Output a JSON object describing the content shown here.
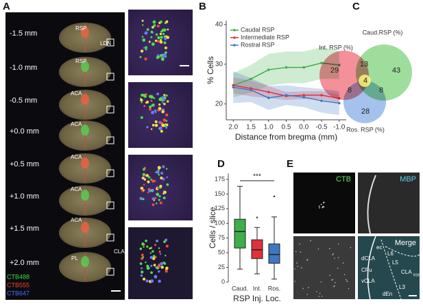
{
  "panels": {
    "letters": [
      "A",
      "B",
      "C",
      "D",
      "E"
    ],
    "a": {
      "levels": [
        "-1.5 mm",
        "-1.0 mm",
        "-0.5 mm",
        "+0.0 mm",
        "+0.5 mm",
        "+1.0 mm",
        "+1.5 mm",
        "+2.0 mm"
      ],
      "regions": [
        "RSP",
        "LDN",
        "RSP",
        "ACA",
        "ACA",
        "ACA",
        "ACA",
        "ACA",
        "PL",
        "CLA"
      ],
      "legend": [
        {
          "name": "CTB488",
          "color": "#3ddc3d"
        },
        {
          "name": "CTB555",
          "color": "#ff3b2f"
        },
        {
          "name": "CTB647",
          "color": "#4d6bff"
        }
      ]
    },
    "c": {
      "sets": [
        {
          "name": "Int. RSP (%)",
          "color": "#f06b78"
        },
        {
          "name": "Caud.RSP (%)",
          "color": "#7fd27a"
        },
        {
          "name": "Ros. RSP (%)",
          "color": "#86aee6"
        }
      ],
      "regions": [
        29,
        13,
        43,
        8,
        4,
        8,
        28
      ]
    },
    "e": {
      "channels": [
        {
          "name": "CTB",
          "color": "#6be36b"
        },
        {
          "name": "MBP",
          "color": "#5fd0e8"
        },
        {
          "name": "Merge",
          "color": "#ffffff"
        }
      ],
      "annotations": [
        "ec",
        "L6",
        "L5",
        "dCLA",
        "CPu",
        "CLA",
        "RSP",
        "vCLA",
        "dEn",
        "L3"
      ]
    }
  },
  "chart_data": [
    {
      "type": "line",
      "x_label": "Distance from bregma (mm)",
      "y_label": "% Cells",
      "x": [
        2,
        1.5,
        1,
        0.5,
        0,
        -0.5,
        -1
      ],
      "xlim": [
        2.2,
        -1.2
      ],
      "xticks": [
        {
          "value": 2,
          "label": "2.0"
        },
        1.5,
        {
          "value": 1,
          "label": "1.0"
        },
        0.5,
        {
          "value": 0,
          "label": "0.0"
        },
        -0.5,
        {
          "value": -1,
          "label": "-1.0"
        }
      ],
      "ylim": [
        16,
        41
      ],
      "yticks": [
        20,
        30,
        40
      ],
      "grid": false,
      "legend": "upper left",
      "series": [
        {
          "name": "Caudal RSP",
          "color": "#3fae49",
          "values": [
            24.7,
            26.3,
            28.6,
            29.2,
            29.2,
            30.3,
            29.8
          ],
          "errors": [
            3,
            3.5,
            4,
            4,
            4,
            4,
            3.5
          ]
        },
        {
          "name": "Intermediate RSP",
          "color": "#e0313d",
          "values": [
            24.7,
            23.9,
            23,
            22,
            22.2,
            22.2,
            21.4
          ],
          "errors": [
            2,
            2,
            1.5,
            1,
            1,
            1,
            1
          ]
        },
        {
          "name": "Rostral RSP",
          "color": "#3e78c2",
          "values": [
            24.2,
            23.5,
            21.5,
            22.2,
            21.7,
            20.8,
            20.2
          ],
          "errors": [
            4,
            3,
            3,
            2.5,
            2.5,
            3,
            3
          ]
        }
      ]
    },
    {
      "type": "box",
      "x_label": "RSP Inj. Loc.",
      "y_label": "Cells / slice",
      "annotation": "***",
      "categories": [
        "Caud.",
        "Int.",
        "Ros."
      ],
      "colors": [
        "#3fae49",
        "#e0313d",
        "#3e78c2"
      ],
      "ylim": [
        0,
        185
      ],
      "yticks": [
        0,
        25,
        50,
        75,
        100,
        125,
        150,
        175
      ],
      "boxes": [
        {
          "whisker_low": 22,
          "q1": 58,
          "median": 86,
          "q3": 107,
          "whisker_high": 163,
          "outliers": []
        },
        {
          "whisker_low": 14,
          "q1": 40,
          "median": 55,
          "q3": 72,
          "whisker_high": 93,
          "outliers": [
            110
          ]
        },
        {
          "whisker_low": 5,
          "q1": 32,
          "median": 47,
          "q3": 65,
          "whisker_high": 111,
          "outliers": [
            146
          ]
        }
      ]
    }
  ]
}
